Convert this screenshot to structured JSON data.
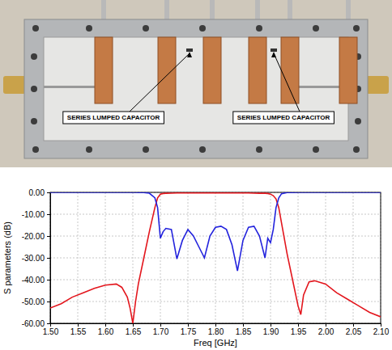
{
  "photo": {
    "labels": [
      "SERIES LUMPED CAPACITOR",
      "SERIES LUMPED CAPACITOR"
    ]
  },
  "chart_data": {
    "type": "line",
    "x_label": "Freq [GHz]",
    "y_label": "S parameters (dB)",
    "grid": true,
    "xlim": [
      1.5,
      2.1
    ],
    "ylim": [
      -60,
      0
    ],
    "xticks": [
      {
        "value": 1.5,
        "label": "1.50"
      },
      {
        "value": 1.55,
        "label": "1.55"
      },
      {
        "value": 1.6,
        "label": "1.60"
      },
      {
        "value": 1.65,
        "label": "1.65"
      },
      {
        "value": 1.7,
        "label": "1.70"
      },
      {
        "value": 1.75,
        "label": "1.75"
      },
      {
        "value": 1.8,
        "label": "1.80"
      },
      {
        "value": 1.85,
        "label": "1.85"
      },
      {
        "value": 1.9,
        "label": "1.90"
      },
      {
        "value": 1.95,
        "label": "1.95"
      },
      {
        "value": 2.0,
        "label": "2.00"
      },
      {
        "value": 2.05,
        "label": "2.05"
      },
      {
        "value": 2.1,
        "label": "2.10"
      }
    ],
    "yticks": [
      {
        "value": 0,
        "label": "0.00"
      },
      {
        "value": -10,
        "label": "-10.00"
      },
      {
        "value": -20,
        "label": "-20.00"
      },
      {
        "value": -30,
        "label": "-30.00"
      },
      {
        "value": -40,
        "label": "-40.00"
      },
      {
        "value": -50,
        "label": "-50.00"
      },
      {
        "value": -60,
        "label": "-60.00"
      }
    ],
    "x": [
      1.5,
      1.52,
      1.54,
      1.56,
      1.58,
      1.6,
      1.62,
      1.63,
      1.64,
      1.645,
      1.65,
      1.655,
      1.66,
      1.67,
      1.68,
      1.69,
      1.695,
      1.7,
      1.705,
      1.71,
      1.72,
      1.73,
      1.74,
      1.75,
      1.76,
      1.77,
      1.78,
      1.79,
      1.8,
      1.81,
      1.82,
      1.83,
      1.84,
      1.85,
      1.86,
      1.87,
      1.88,
      1.89,
      1.895,
      1.9,
      1.905,
      1.91,
      1.915,
      1.92,
      1.93,
      1.94,
      1.95,
      1.955,
      1.96,
      1.97,
      1.98,
      2.0,
      2.02,
      2.04,
      2.06,
      2.08,
      2.1
    ],
    "series": [
      {
        "color": "#e3161d",
        "line_style": "solid",
        "values": [
          -53,
          -51,
          -48,
          -46,
          -44,
          -42.5,
          -42,
          -43.5,
          -48,
          -53,
          -60,
          -50,
          -42,
          -30,
          -18,
          -7,
          -2.5,
          -0.8,
          -0.5,
          -0.4,
          -0.35,
          -0.3,
          -0.3,
          -0.3,
          -0.3,
          -0.3,
          -0.3,
          -0.3,
          -0.3,
          -0.3,
          -0.3,
          -0.3,
          -0.3,
          -0.3,
          -0.3,
          -0.35,
          -0.4,
          -0.4,
          -0.5,
          -0.8,
          -1.5,
          -3,
          -7,
          -14,
          -28,
          -40,
          -52,
          -56,
          -47,
          -41,
          -40.5,
          -42,
          -46,
          -49,
          -52,
          -55,
          -57
        ]
      },
      {
        "color": "#2323dd",
        "line_style": "solid",
        "values": [
          -0.02,
          -0.02,
          -0.02,
          -0.02,
          -0.02,
          -0.02,
          -0.02,
          -0.02,
          -0.02,
          -0.02,
          -0.02,
          -0.02,
          -0.03,
          -0.1,
          -0.4,
          -2.5,
          -7,
          -21,
          -18,
          -16.5,
          -17,
          -30.5,
          -22,
          -17,
          -20,
          -25,
          -30,
          -20,
          -16,
          -15.5,
          -17,
          -24,
          -36,
          -22,
          -16,
          -15.5,
          -20,
          -30,
          -21,
          -23,
          -17,
          -7,
          -2.5,
          -0.6,
          -0.1,
          -0.03,
          -0.02,
          -0.02,
          -0.02,
          -0.02,
          -0.02,
          -0.02,
          -0.02,
          -0.02,
          -0.02,
          -0.02,
          -0.02
        ]
      }
    ]
  }
}
